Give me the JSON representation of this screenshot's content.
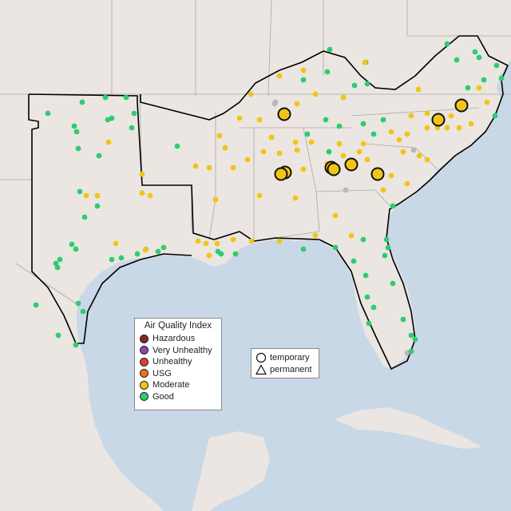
{
  "map": {
    "colors": {
      "water": "#c9d8e6",
      "land": "#ebe6e1",
      "boundary": "#a9a9a9",
      "study_outline": "#000000"
    }
  },
  "legend": {
    "title": "Air Quality Index",
    "categories": [
      {
        "label": "Hazardous",
        "color": "#7e2a24"
      },
      {
        "label": "Very Unhealthy",
        "color": "#8e44ad"
      },
      {
        "label": "Unhealthy",
        "color": "#e03c31"
      },
      {
        "label": "USG",
        "color": "#e8761a"
      },
      {
        "label": "Moderate",
        "color": "#f2c416"
      },
      {
        "label": "Good",
        "color": "#2ecc71"
      }
    ]
  },
  "site_type_legend": {
    "items": [
      {
        "label": "temporary",
        "shape": "circle-outline"
      },
      {
        "label": "permanent",
        "shape": "triangle-outline"
      }
    ]
  },
  "monitor_colors": {
    "good": "#2ecc71",
    "moderate": "#f2c416",
    "no_data": "#b8b8b8"
  }
}
